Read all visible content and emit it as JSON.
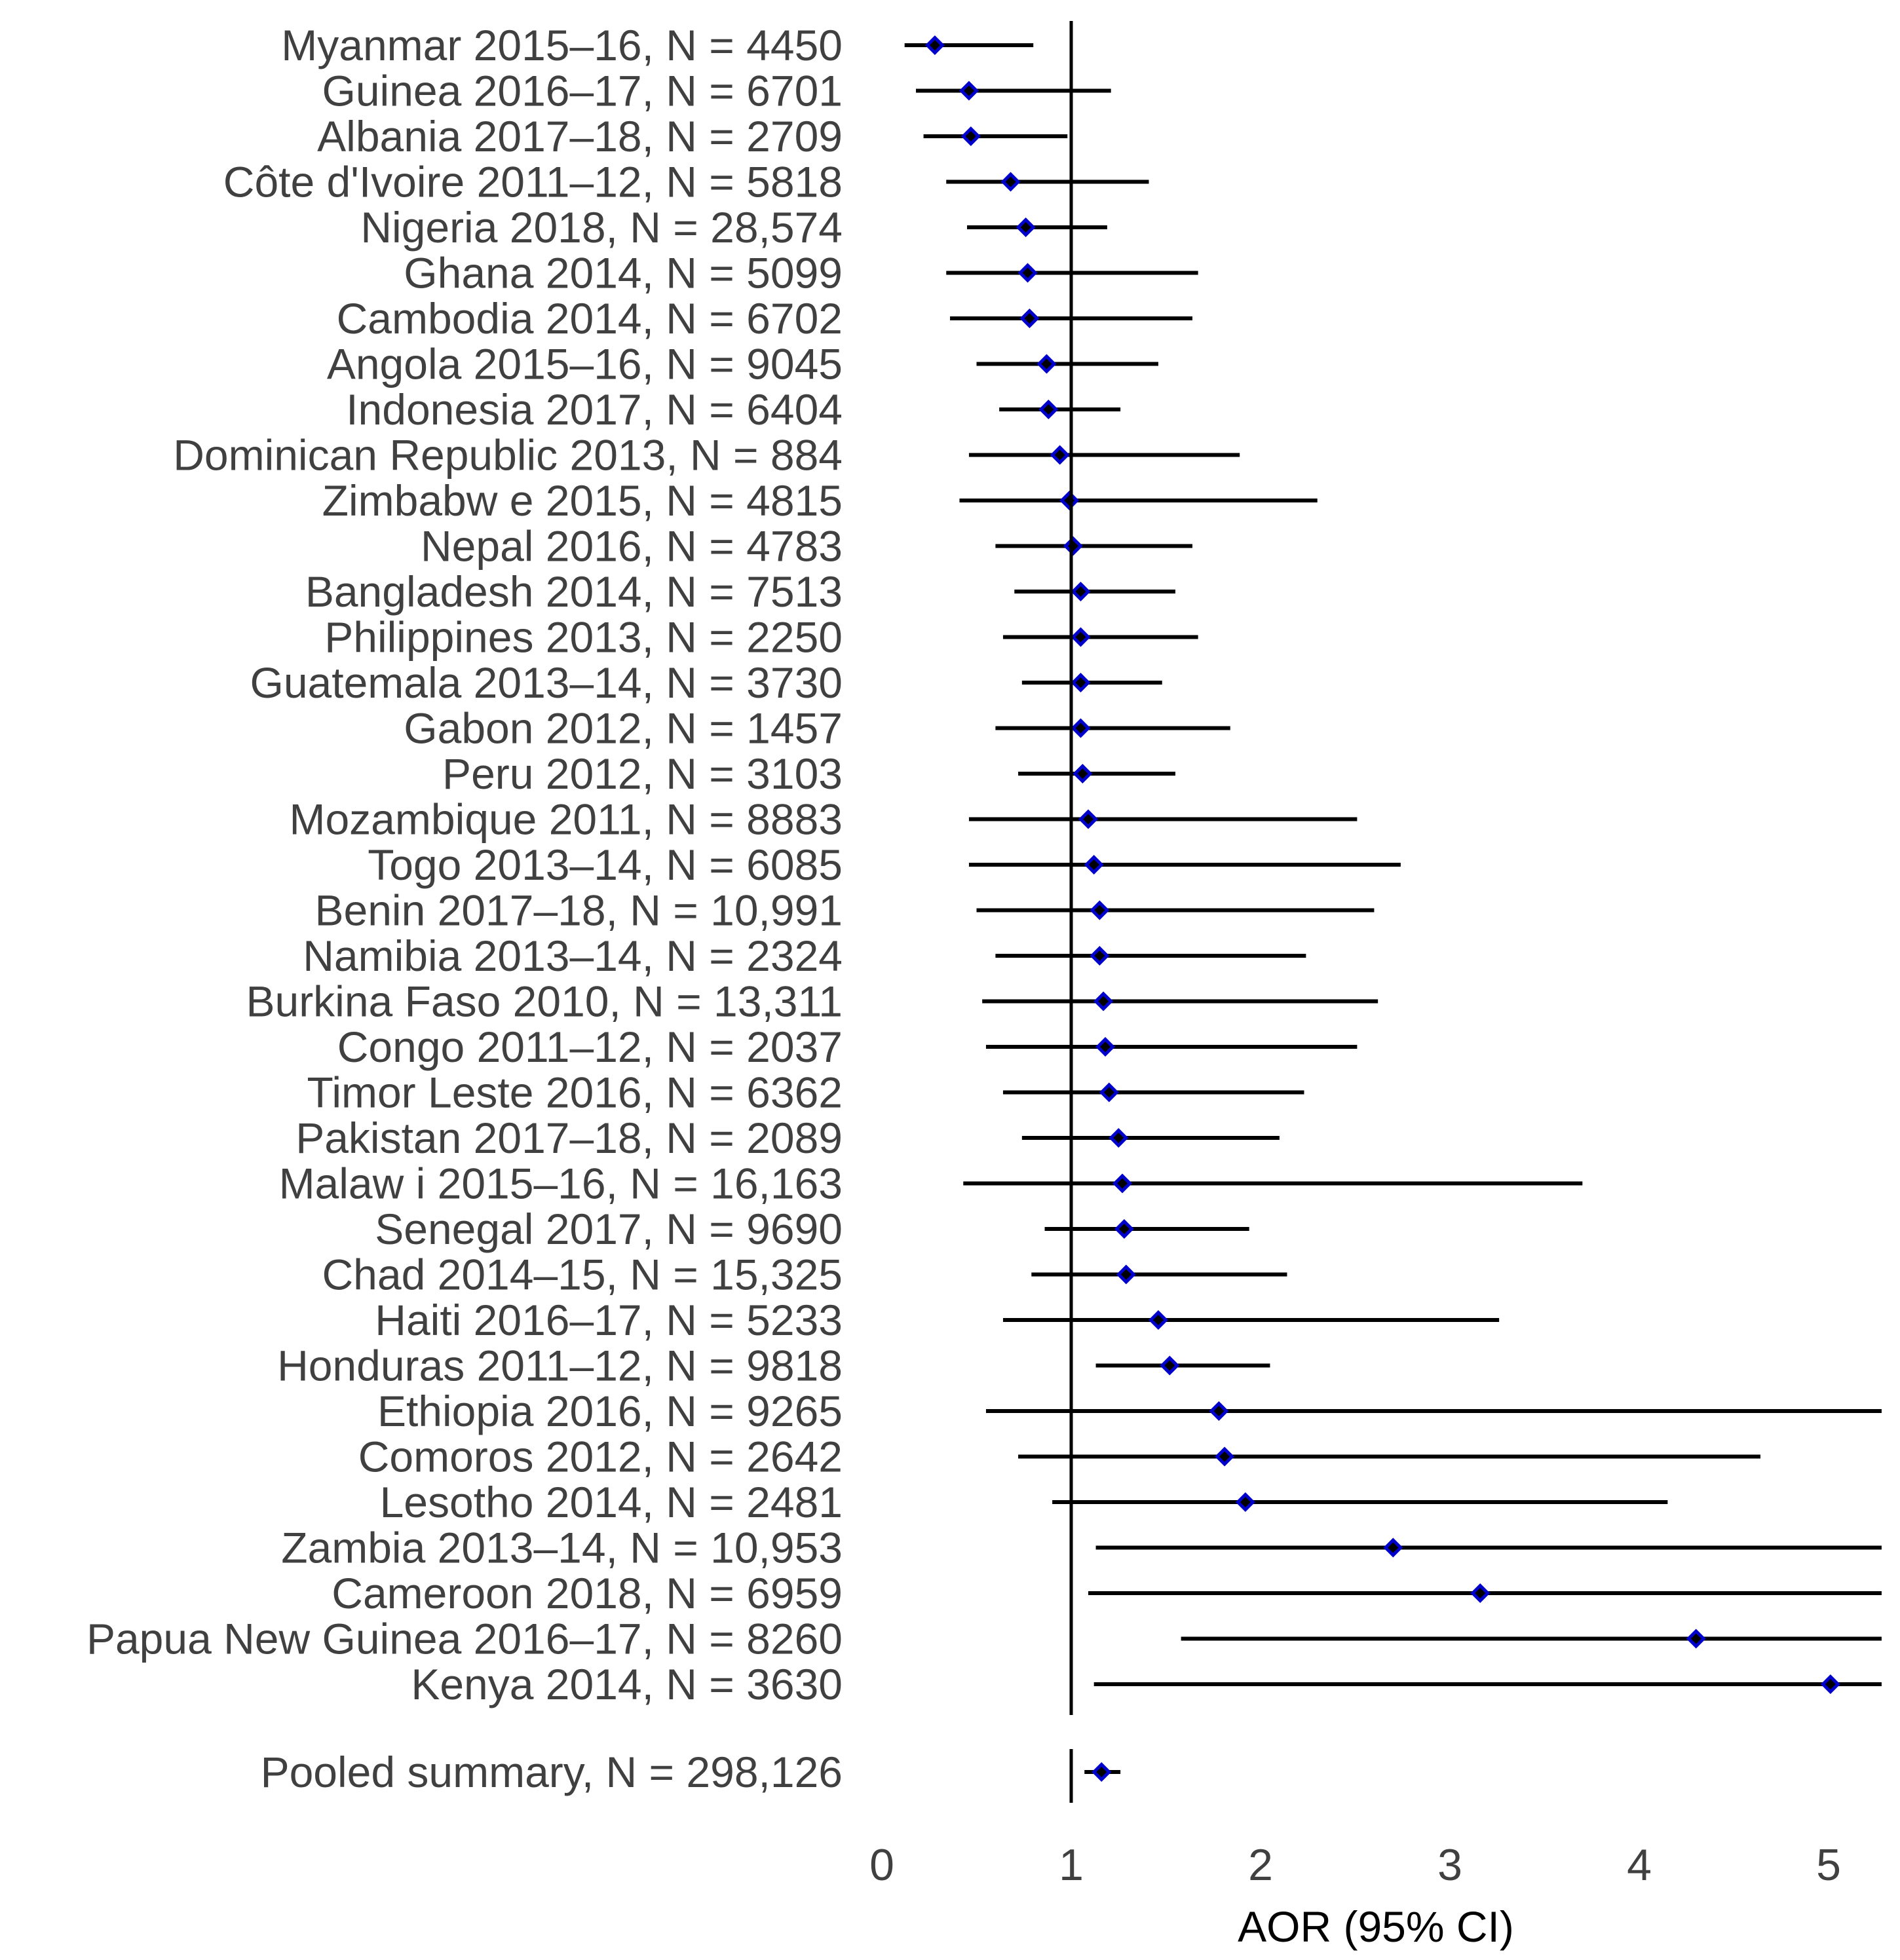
{
  "chart_data": {
    "type": "forest",
    "xlabel": "AOR (95% CI)",
    "reference_value": 1,
    "xlim": [
      0,
      5.28
    ],
    "xticks": [
      0,
      1,
      2,
      3,
      4,
      5
    ],
    "xtick_labels": [
      "0",
      "1",
      "2",
      "3",
      "4",
      "5"
    ],
    "colors": {
      "marker_fill": "#0000cc",
      "marker_center": "#000000",
      "ci_line": "#000000",
      "reference_line": "#000000",
      "label_text": "#404040"
    },
    "rows": [
      {
        "label": "Myanmar 2015–16,  N = 4450",
        "aor": 0.28,
        "lower": 0.12,
        "upper": 0.8
      },
      {
        "label": "Guinea 2016–17,  N = 6701",
        "aor": 0.46,
        "lower": 0.18,
        "upper": 1.21
      },
      {
        "label": "Albania 2017–18,  N = 2709",
        "aor": 0.47,
        "lower": 0.22,
        "upper": 0.98
      },
      {
        "label": "Côte d'Ivoire 2011–12,  N = 5818",
        "aor": 0.68,
        "lower": 0.34,
        "upper": 1.41
      },
      {
        "label": "Nigeria 2018,  N = 28,574",
        "aor": 0.76,
        "lower": 0.45,
        "upper": 1.19
      },
      {
        "label": "Ghana 2014,  N = 5099",
        "aor": 0.77,
        "lower": 0.34,
        "upper": 1.67
      },
      {
        "label": "Cambodia 2014,  N = 6702",
        "aor": 0.78,
        "lower": 0.36,
        "upper": 1.64
      },
      {
        "label": "Angola 2015–16,  N = 9045",
        "aor": 0.87,
        "lower": 0.5,
        "upper": 1.46
      },
      {
        "label": "Indonesia 2017,  N = 6404",
        "aor": 0.88,
        "lower": 0.62,
        "upper": 1.26
      },
      {
        "label": "Dominican Republic 2013,  N = 884",
        "aor": 0.94,
        "lower": 0.46,
        "upper": 1.89
      },
      {
        "label": "Zimbabw e 2015,  N = 4815",
        "aor": 0.99,
        "lower": 0.41,
        "upper": 2.3
      },
      {
        "label": "Nepal 2016,  N = 4783",
        "aor": 1.01,
        "lower": 0.6,
        "upper": 1.64
      },
      {
        "label": "Bangladesh 2014,  N = 7513",
        "aor": 1.05,
        "lower": 0.7,
        "upper": 1.55
      },
      {
        "label": "Philippines 2013,  N = 2250",
        "aor": 1.05,
        "lower": 0.64,
        "upper": 1.67
      },
      {
        "label": "Guatemala 2013–14,  N = 3730",
        "aor": 1.05,
        "lower": 0.74,
        "upper": 1.48
      },
      {
        "label": "Gabon 2012,  N = 1457",
        "aor": 1.05,
        "lower": 0.6,
        "upper": 1.84
      },
      {
        "label": "Peru 2012,  N = 3103",
        "aor": 1.06,
        "lower": 0.72,
        "upper": 1.55
      },
      {
        "label": "Mozambique 2011,  N = 8883",
        "aor": 1.09,
        "lower": 0.46,
        "upper": 2.51
      },
      {
        "label": "Togo 2013–14,  N = 6085",
        "aor": 1.12,
        "lower": 0.46,
        "upper": 2.74
      },
      {
        "label": "Benin 2017–18,  N = 10,991",
        "aor": 1.15,
        "lower": 0.5,
        "upper": 2.6
      },
      {
        "label": "Namibia 2013–14,  N = 2324",
        "aor": 1.15,
        "lower": 0.6,
        "upper": 2.24
      },
      {
        "label": "Burkina Faso 2010,  N = 13,311",
        "aor": 1.17,
        "lower": 0.53,
        "upper": 2.62
      },
      {
        "label": "Congo 2011–12,  N = 2037",
        "aor": 1.18,
        "lower": 0.55,
        "upper": 2.51
      },
      {
        "label": "Timor Leste 2016,  N = 6362",
        "aor": 1.2,
        "lower": 0.64,
        "upper": 2.23
      },
      {
        "label": "Pakistan 2017–18,  N = 2089",
        "aor": 1.25,
        "lower": 0.74,
        "upper": 2.1
      },
      {
        "label": "Malaw i 2015–16,  N = 16,163",
        "aor": 1.27,
        "lower": 0.43,
        "upper": 3.7
      },
      {
        "label": "Senegal 2017,  N = 9690",
        "aor": 1.28,
        "lower": 0.86,
        "upper": 1.94
      },
      {
        "label": "Chad 2014–15,  N = 15,325",
        "aor": 1.29,
        "lower": 0.79,
        "upper": 2.14
      },
      {
        "label": "Haiti 2016–17,  N = 5233",
        "aor": 1.46,
        "lower": 0.64,
        "upper": 3.26
      },
      {
        "label": "Honduras 2011–12,  N = 9818",
        "aor": 1.52,
        "lower": 1.13,
        "upper": 2.05
      },
      {
        "label": "Ethiopia 2016,  N = 9265",
        "aor": 1.78,
        "lower": 0.55,
        "upper": 5.28
      },
      {
        "label": "Comoros 2012,  N = 2642",
        "aor": 1.81,
        "lower": 0.72,
        "upper": 4.64
      },
      {
        "label": "Lesotho 2014,  N = 2481",
        "aor": 1.92,
        "lower": 0.9,
        "upper": 4.15
      },
      {
        "label": "Zambia 2013–14,  N = 10,953",
        "aor": 2.7,
        "lower": 1.13,
        "upper": 5.28
      },
      {
        "label": "Cameroon 2018,  N = 6959",
        "aor": 3.16,
        "lower": 1.09,
        "upper": 5.28
      },
      {
        "label": "Papua New  Guinea 2016–17,  N = 8260",
        "aor": 4.3,
        "lower": 1.58,
        "upper": 5.28
      },
      {
        "label": "Kenya 2014,  N = 3630",
        "aor": 5.01,
        "lower": 1.12,
        "upper": 5.28
      }
    ],
    "summary": {
      "label": "Pooled summary,  N = 298,126",
      "aor": 1.16,
      "lower": 1.07,
      "upper": 1.26
    }
  }
}
